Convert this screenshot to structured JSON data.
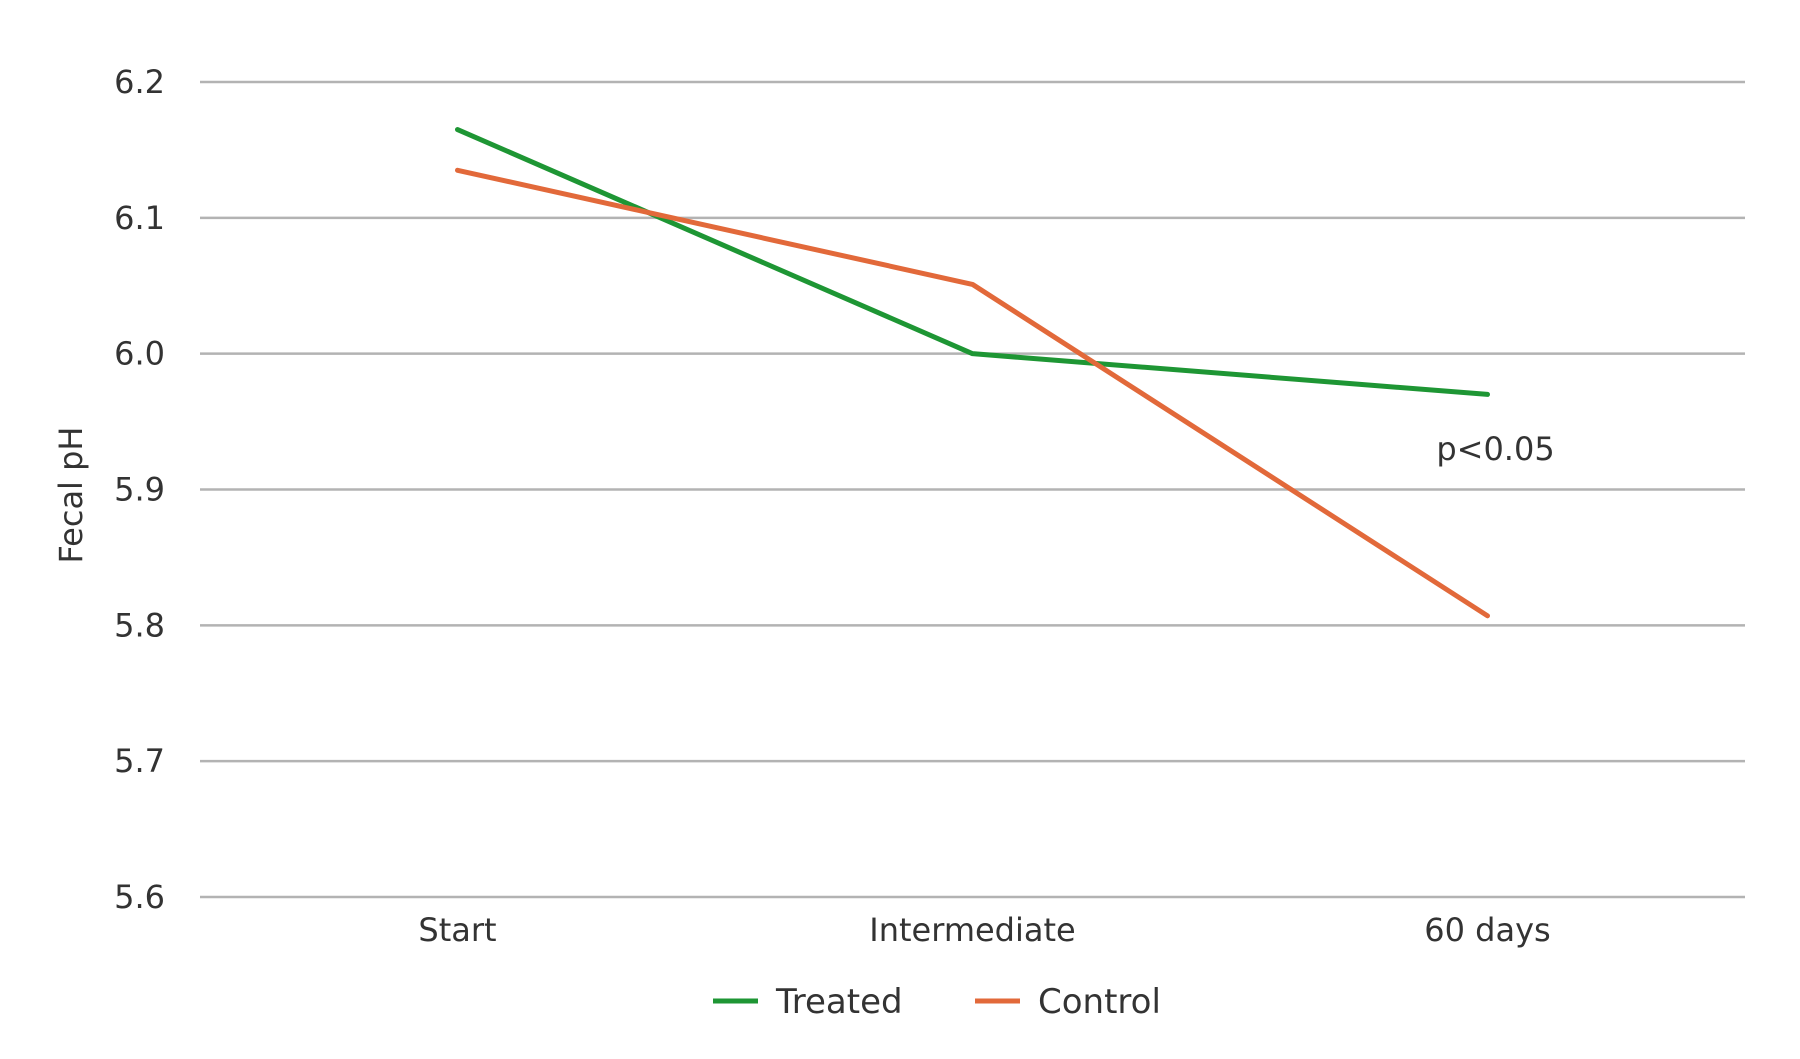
{
  "chart_data": {
    "type": "line",
    "categories": [
      "Start",
      "Intermediate",
      "60 days"
    ],
    "series": [
      {
        "name": "Treated",
        "values": [
          6.165,
          6.0,
          5.97
        ],
        "color": "#1e9634"
      },
      {
        "name": "Control",
        "values": [
          6.135,
          6.051,
          5.807
        ],
        "color": "#e2693a"
      }
    ],
    "title": "",
    "xlabel": "",
    "ylabel": "Fecal pH",
    "ylim": [
      5.6,
      6.2
    ],
    "yticks": [
      5.6,
      5.7,
      5.8,
      5.9,
      6.0,
      6.1,
      6.2
    ],
    "ytick_labels": [
      "5.6",
      "5.7",
      "5.8",
      "5.9",
      "6.0",
      "6.1",
      "6.2"
    ],
    "grid": true,
    "legend_position": "bottom-center",
    "annotations": [
      {
        "text": "p<0.05",
        "near_category": "60 days",
        "y": 5.93
      }
    ]
  }
}
